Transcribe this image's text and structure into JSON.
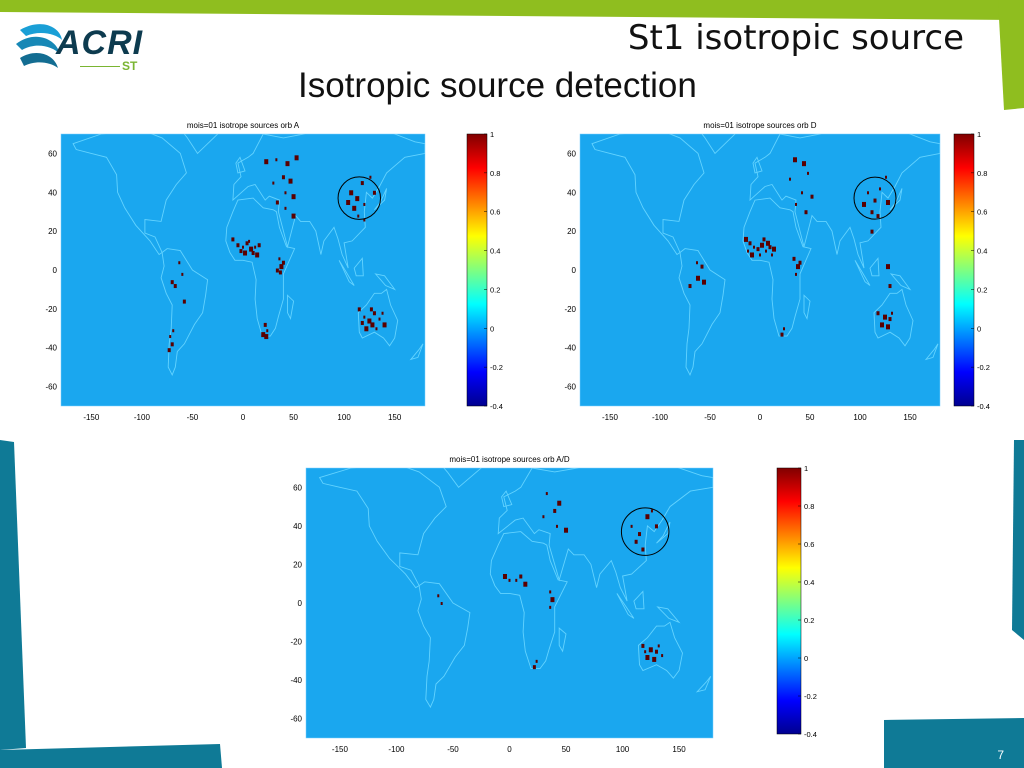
{
  "slide": {
    "title": "St1 isotropic source",
    "subtitle": "Isotropic source detection",
    "logo": {
      "main": "ACRI",
      "sub": "ST"
    },
    "page_number": "7",
    "colors": {
      "green": "#8fbe1f",
      "teal": "#0f7a96",
      "map_ocean": "#1aa7ef",
      "coast": "#63d3ff",
      "source": "#5a0000"
    }
  },
  "chart_data": [
    {
      "type": "heatmap",
      "title": "mois=01 isotrope sources orb A",
      "xlim": [
        -180,
        180
      ],
      "ylim": [
        -70,
        70
      ],
      "x_ticks": [
        -150,
        -100,
        -50,
        0,
        50,
        100,
        150
      ],
      "y_ticks": [
        60,
        40,
        20,
        0,
        -20,
        -40,
        -60
      ],
      "colorbar": {
        "min": -0.4,
        "max": 1,
        "ticks": [
          1,
          0.8,
          0.6,
          0.4,
          0.2,
          0,
          -0.2,
          -0.4
        ]
      },
      "circle": {
        "lon": 115,
        "lat": 37,
        "radius_deg": 21
      },
      "points": [
        [
          33,
          57
        ],
        [
          44,
          55
        ],
        [
          23,
          56
        ],
        [
          53,
          58
        ],
        [
          40,
          48
        ],
        [
          30,
          45
        ],
        [
          47,
          46
        ],
        [
          42,
          40
        ],
        [
          50,
          38
        ],
        [
          34,
          35
        ],
        [
          42,
          32
        ],
        [
          50,
          28
        ],
        [
          -10,
          16
        ],
        [
          -5,
          13
        ],
        [
          0,
          12
        ],
        [
          4,
          14
        ],
        [
          8,
          11
        ],
        [
          12,
          12
        ],
        [
          16,
          13
        ],
        [
          10,
          9
        ],
        [
          2,
          9
        ],
        [
          -2,
          10
        ],
        [
          6,
          15
        ],
        [
          14,
          8
        ],
        [
          36,
          6
        ],
        [
          38,
          2
        ],
        [
          34,
          0
        ],
        [
          40,
          4
        ],
        [
          37,
          -1
        ],
        [
          -63,
          4
        ],
        [
          -60,
          -2
        ],
        [
          -70,
          -6
        ],
        [
          -67,
          -8
        ],
        [
          -58,
          -16
        ],
        [
          -72,
          -34
        ],
        [
          -70,
          -38
        ],
        [
          -73,
          -41
        ],
        [
          -69,
          -31
        ],
        [
          22,
          -28
        ],
        [
          24,
          -31
        ],
        [
          23,
          -34
        ],
        [
          20,
          -33
        ],
        [
          107,
          40
        ],
        [
          113,
          37
        ],
        [
          120,
          34
        ],
        [
          118,
          45
        ],
        [
          126,
          48
        ],
        [
          110,
          32
        ],
        [
          114,
          28
        ],
        [
          104,
          35
        ],
        [
          120,
          26
        ],
        [
          130,
          40
        ],
        [
          115,
          -20
        ],
        [
          120,
          -24
        ],
        [
          125,
          -26
        ],
        [
          130,
          -22
        ],
        [
          128,
          -28
        ],
        [
          135,
          -25
        ],
        [
          132,
          -30
        ],
        [
          122,
          -30
        ],
        [
          140,
          -28
        ],
        [
          138,
          -22
        ],
        [
          118,
          -27
        ],
        [
          127,
          -20
        ]
      ]
    },
    {
      "type": "heatmap",
      "title": "mois=01 isotrope sources orb D",
      "xlim": [
        -180,
        180
      ],
      "ylim": [
        -70,
        70
      ],
      "x_ticks": [
        -150,
        -100,
        -50,
        0,
        50,
        100,
        150
      ],
      "y_ticks": [
        60,
        40,
        20,
        0,
        -20,
        -40,
        -60
      ],
      "colorbar": {
        "min": -0.4,
        "max": 1,
        "ticks": [
          1,
          0.8,
          0.6,
          0.4,
          0.2,
          0,
          -0.2,
          -0.4
        ]
      },
      "circle": {
        "lon": 115,
        "lat": 37,
        "radius_deg": 21
      },
      "points": [
        [
          35,
          57
        ],
        [
          44,
          55
        ],
        [
          48,
          50
        ],
        [
          30,
          47
        ],
        [
          42,
          40
        ],
        [
          52,
          38
        ],
        [
          36,
          34
        ],
        [
          46,
          30
        ],
        [
          -14,
          16
        ],
        [
          -10,
          14
        ],
        [
          -6,
          12
        ],
        [
          -2,
          11
        ],
        [
          2,
          13
        ],
        [
          6,
          10
        ],
        [
          10,
          12
        ],
        [
          14,
          11
        ],
        [
          -8,
          8
        ],
        [
          0,
          8
        ],
        [
          8,
          14
        ],
        [
          12,
          8
        ],
        [
          -12,
          10
        ],
        [
          4,
          16
        ],
        [
          34,
          6
        ],
        [
          38,
          2
        ],
        [
          36,
          -2
        ],
        [
          40,
          4
        ],
        [
          -63,
          4
        ],
        [
          -58,
          2
        ],
        [
          -62,
          -4
        ],
        [
          -56,
          -6
        ],
        [
          -70,
          -8
        ],
        [
          24,
          -30
        ],
        [
          22,
          -33
        ],
        [
          108,
          40
        ],
        [
          115,
          36
        ],
        [
          120,
          42
        ],
        [
          126,
          48
        ],
        [
          112,
          30
        ],
        [
          118,
          28
        ],
        [
          104,
          34
        ],
        [
          128,
          35
        ],
        [
          112,
          20
        ],
        [
          128,
          2
        ],
        [
          130,
          -8
        ],
        [
          118,
          -22
        ],
        [
          125,
          -24
        ],
        [
          130,
          -25
        ],
        [
          122,
          -28
        ],
        [
          132,
          -22
        ],
        [
          128,
          -29
        ]
      ]
    },
    {
      "type": "heatmap",
      "title": "mois=01 isotrope sources orb A/D",
      "xlim": [
        -180,
        180
      ],
      "ylim": [
        -70,
        70
      ],
      "x_ticks": [
        -150,
        -100,
        -50,
        0,
        50,
        100,
        150
      ],
      "y_ticks": [
        60,
        40,
        20,
        0,
        -20,
        -40,
        -60
      ],
      "colorbar": {
        "min": -0.4,
        "max": 1,
        "ticks": [
          1,
          0.8,
          0.6,
          0.4,
          0.2,
          0,
          -0.2,
          -0.4
        ]
      },
      "circle": {
        "lon": 120,
        "lat": 37,
        "radius_deg": 21
      },
      "points": [
        [
          33,
          57
        ],
        [
          44,
          52
        ],
        [
          40,
          48
        ],
        [
          30,
          45
        ],
        [
          42,
          40
        ],
        [
          50,
          38
        ],
        [
          -4,
          14
        ],
        [
          0,
          12
        ],
        [
          6,
          12
        ],
        [
          10,
          14
        ],
        [
          14,
          10
        ],
        [
          36,
          6
        ],
        [
          38,
          2
        ],
        [
          36,
          -2
        ],
        [
          -63,
          4
        ],
        [
          -60,
          0
        ],
        [
          24,
          -30
        ],
        [
          22,
          -33
        ],
        [
          108,
          40
        ],
        [
          115,
          36
        ],
        [
          122,
          45
        ],
        [
          126,
          48
        ],
        [
          112,
          32
        ],
        [
          118,
          28
        ],
        [
          130,
          40
        ],
        [
          118,
          -22
        ],
        [
          125,
          -24
        ],
        [
          130,
          -25
        ],
        [
          122,
          -28
        ],
        [
          132,
          -22
        ],
        [
          128,
          -29
        ],
        [
          135,
          -27
        ],
        [
          120,
          -25
        ]
      ]
    }
  ]
}
